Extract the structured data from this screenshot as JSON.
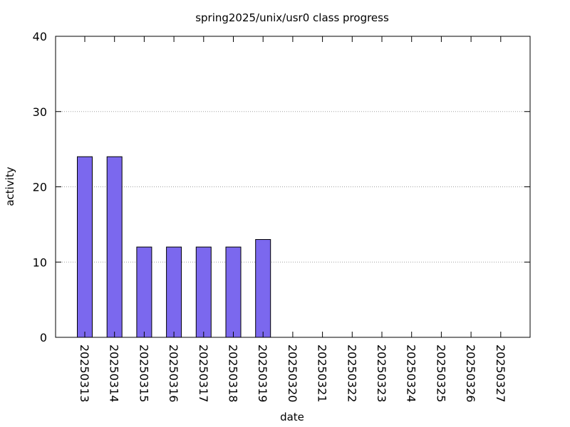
{
  "chart_data": {
    "type": "bar",
    "title": "spring2025/unix/usr0 class progress",
    "xlabel": "date",
    "ylabel": "activity",
    "ylim": [
      0,
      40
    ],
    "yticks": [
      0,
      10,
      20,
      30,
      40
    ],
    "grid": "horizontal dotted",
    "legend": "none",
    "categories": [
      "20250313",
      "20250314",
      "20250315",
      "20250316",
      "20250317",
      "20250318",
      "20250319",
      "20250320",
      "20250321",
      "20250322",
      "20250323",
      "20250324",
      "20250325",
      "20250326",
      "20250327"
    ],
    "values": [
      24,
      24,
      12,
      12,
      12,
      12,
      13,
      0,
      0,
      0,
      0,
      0,
      0,
      0,
      0
    ],
    "bar_color": "#7b68ee",
    "bar_edge_color": "#000000",
    "grid_color": "#a0a0a0"
  }
}
